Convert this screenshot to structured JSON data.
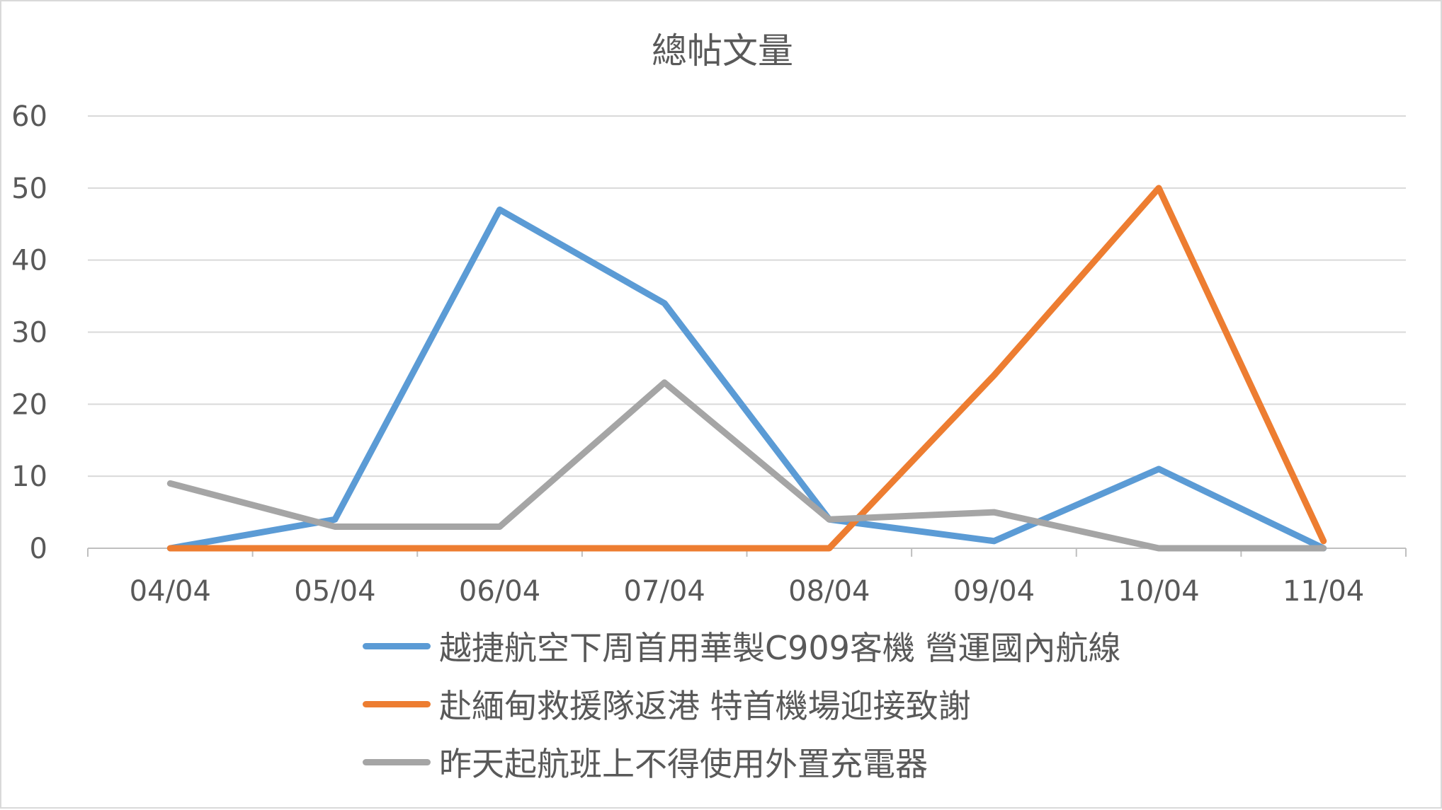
{
  "chart_data": {
    "type": "line",
    "title": "總帖文量",
    "categories": [
      "04/04",
      "05/04",
      "06/04",
      "07/04",
      "08/04",
      "09/04",
      "10/04",
      "11/04"
    ],
    "ylim": [
      0,
      60
    ],
    "yticks": [
      0,
      10,
      20,
      30,
      40,
      50,
      60
    ],
    "grid": true,
    "legend_position": "bottom",
    "series": [
      {
        "name": "越捷航空下周首用華製C909客機 營運國內航線",
        "color": "#5b9bd5",
        "values": [
          0,
          4,
          47,
          34,
          4,
          1,
          11,
          0
        ]
      },
      {
        "name": "赴緬甸救援隊返港 特首機場迎接致謝",
        "color": "#ed7d31",
        "values": [
          0,
          0,
          0,
          0,
          0,
          24,
          50,
          1
        ]
      },
      {
        "name": "昨天起航班上不得使用外置充電器",
        "color": "#a5a5a5",
        "values": [
          9,
          3,
          3,
          23,
          4,
          5,
          0,
          0
        ]
      }
    ]
  }
}
